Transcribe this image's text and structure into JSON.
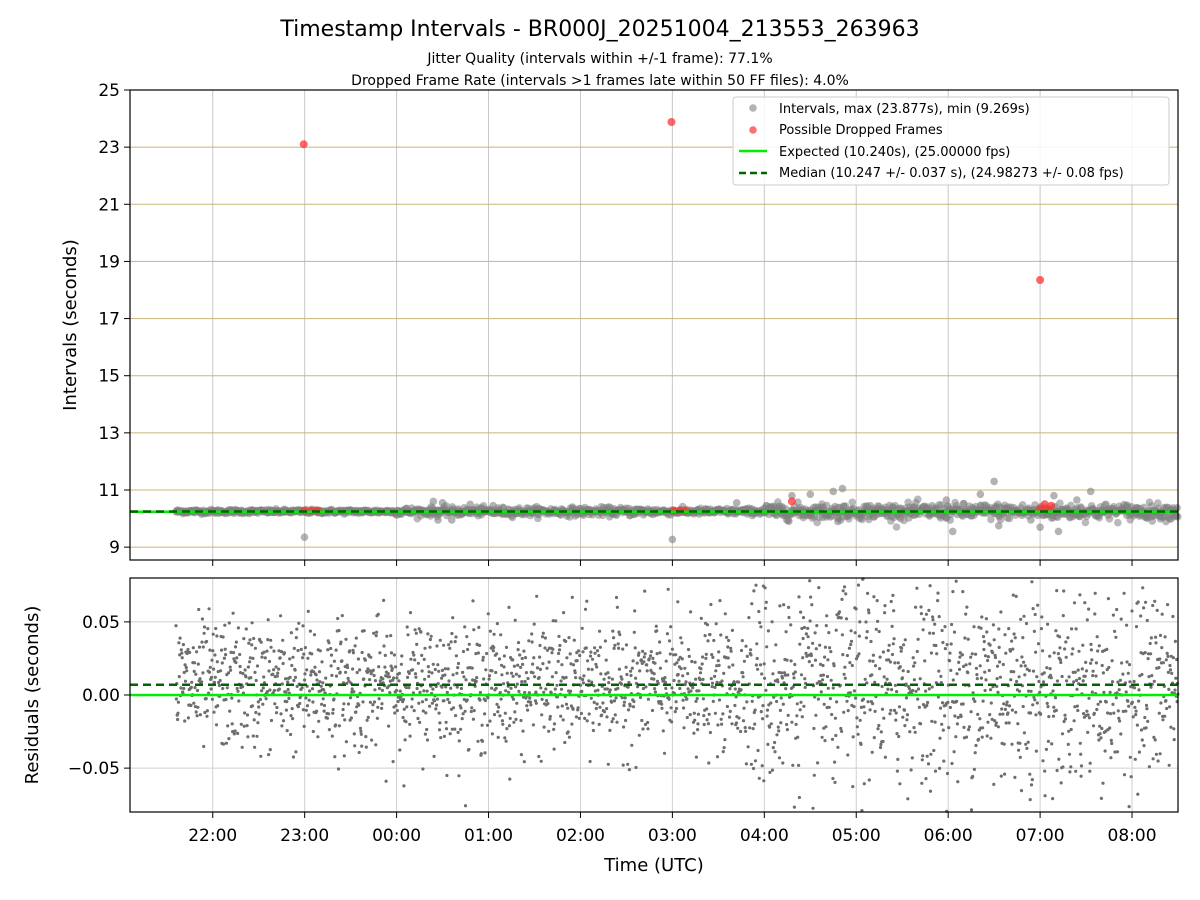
{
  "chart_data": [
    {
      "type": "scatter",
      "title": "Timestamp Intervals - BR000J_20251004_213553_263963",
      "subtitle_1": "Jitter Quality (intervals within +/-1 frame): 77.1%",
      "subtitle_2": "Dropped Frame Rate (intervals >1 frames late within 50 FF files): 4.0%",
      "ylabel": "Intervals (seconds)",
      "x_unit": "hours (UTC)",
      "xlim": [
        21.1,
        32.5
      ],
      "ylim": [
        8.55,
        25
      ],
      "yticks": [
        9,
        11,
        13,
        15,
        17,
        19,
        21,
        23,
        25
      ],
      "ytick_labels": [
        "9",
        "11",
        "13",
        "15",
        "17",
        "19",
        "21",
        "23",
        "25"
      ],
      "xticks": [
        22,
        23,
        24,
        25,
        26,
        27,
        28,
        29,
        30,
        31,
        32
      ],
      "grid": "on",
      "legend_position": "top-right",
      "legend": [
        "Intervals, max (23.877s), min (9.269s)",
        "Possible Dropped Frames",
        "Expected (10.240s), (25.00000 fps)",
        "Median (10.247 +/- 0.037 s), (24.98273 +/- 0.08 fps)"
      ],
      "expected_interval": 10.24,
      "median_interval": 10.247,
      "data_start_time": 21.6,
      "data_end_time": 32.5,
      "intervals_outliers": [
        {
          "x": 22.998,
          "y": 9.35
        },
        {
          "x": 27.0,
          "y": 9.27
        },
        {
          "x": 30.9,
          "y": 9.95
        },
        {
          "x": 30.05,
          "y": 9.55
        },
        {
          "x": 28.8,
          "y": 9.9
        },
        {
          "x": 31.0,
          "y": 9.7
        },
        {
          "x": 31.2,
          "y": 9.55
        },
        {
          "x": 30.55,
          "y": 9.75
        },
        {
          "x": 28.3,
          "y": 10.8
        },
        {
          "x": 28.5,
          "y": 10.85
        },
        {
          "x": 28.85,
          "y": 11.05
        },
        {
          "x": 28.75,
          "y": 10.95
        },
        {
          "x": 29.98,
          "y": 10.65
        },
        {
          "x": 30.35,
          "y": 10.85
        },
        {
          "x": 30.5,
          "y": 11.3
        },
        {
          "x": 31.15,
          "y": 10.8
        },
        {
          "x": 31.55,
          "y": 10.95
        },
        {
          "x": 31.4,
          "y": 10.65
        },
        {
          "x": 24.4,
          "y": 10.6
        },
        {
          "x": 24.5,
          "y": 10.55
        },
        {
          "x": 24.45,
          "y": 9.95
        },
        {
          "x": 24.6,
          "y": 9.95
        },
        {
          "x": 24.8,
          "y": 10.5
        },
        {
          "x": 25.05,
          "y": 10.45
        },
        {
          "x": 27.7,
          "y": 10.55
        },
        {
          "x": 28.0,
          "y": 10.35
        }
      ],
      "dropped_frames": [
        {
          "x": 22.99,
          "y": 23.1
        },
        {
          "x": 26.99,
          "y": 23.88
        },
        {
          "x": 31.0,
          "y": 18.35
        },
        {
          "x": 23.0,
          "y": 10.28
        },
        {
          "x": 23.07,
          "y": 10.28
        },
        {
          "x": 23.14,
          "y": 10.28
        },
        {
          "x": 27.02,
          "y": 10.28
        },
        {
          "x": 27.08,
          "y": 10.28
        },
        {
          "x": 27.14,
          "y": 10.28
        },
        {
          "x": 28.3,
          "y": 10.6
        },
        {
          "x": 31.0,
          "y": 10.35
        },
        {
          "x": 31.05,
          "y": 10.5
        },
        {
          "x": 31.08,
          "y": 10.3
        },
        {
          "x": 31.12,
          "y": 10.45
        }
      ],
      "cluster_profile": [
        {
          "x_start": 21.6,
          "x_end": 24.0,
          "spread": 0.08
        },
        {
          "x_start": 24.0,
          "x_end": 26.8,
          "spread": 0.16
        },
        {
          "x_start": 26.8,
          "x_end": 28.0,
          "spread": 0.12
        },
        {
          "x_start": 28.0,
          "x_end": 32.5,
          "spread": 0.3
        }
      ]
    },
    {
      "type": "scatter",
      "ylabel": "Residuals (seconds)",
      "xlabel": "Time (UTC)",
      "xlim": [
        21.1,
        32.5
      ],
      "ylim": [
        -0.08,
        0.08
      ],
      "yticks": [
        -0.05,
        0.0,
        0.05
      ],
      "ytick_labels": [
        "−0.05",
        "0.00",
        "0.05"
      ],
      "xticks": [
        22,
        23,
        24,
        25,
        26,
        27,
        28,
        29,
        30,
        31,
        32
      ],
      "xtick_labels": [
        "22:00",
        "23:00",
        "00:00",
        "01:00",
        "02:00",
        "03:00",
        "04:00",
        "05:00",
        "06:00",
        "07:00",
        "08:00"
      ],
      "grid": "on",
      "expected_residual": 0.0,
      "median_residual": 0.007,
      "residual_spread_profile": [
        {
          "x_start": 21.6,
          "x_end": 24.0,
          "sd": 0.022
        },
        {
          "x_start": 24.0,
          "x_end": 27.8,
          "sd": 0.022
        },
        {
          "x_start": 27.8,
          "x_end": 32.5,
          "sd": 0.036
        }
      ]
    }
  ],
  "colors": {
    "interval_points": "#808080",
    "dropped_points": "#ff3333",
    "expected_line": "#00ee00",
    "median_line": "#006400",
    "grid_vertical": "#c8c8c8",
    "grid_horizontal_top": "#cbb57a",
    "grid_bottom": "#d0d0d0",
    "residual_points": "#6e6e6e"
  }
}
